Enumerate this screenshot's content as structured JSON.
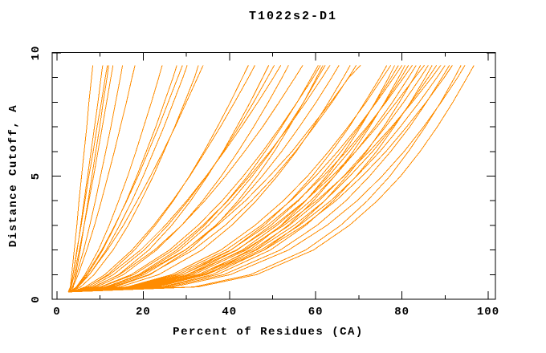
{
  "page": {
    "background": "#FFFFFF"
  },
  "chart_data": {
    "type": "line",
    "title": "T1022s2-D1",
    "xlabel": "Percent of Residues (CA)",
    "ylabel": "Distance Cutoff, A",
    "xlim": [
      0,
      100
    ],
    "ylim": [
      0,
      10
    ],
    "x_ticks_major": [
      0,
      20,
      40,
      60,
      80,
      100
    ],
    "x_ticks_minor": [
      10,
      30,
      50,
      70,
      90
    ],
    "y_ticks_major": [
      0,
      5,
      10
    ],
    "y_ticks_minor": [
      1,
      2,
      3,
      4,
      6,
      7,
      8,
      9
    ],
    "grid": false,
    "legend": false,
    "axis_color": "#000000",
    "curve_color": "#FF8C00",
    "n_curves": 50,
    "orientation": "each series lists x values (percent of residues) sampled at the shared y_samples (distance cutoff, A); curves estimated from pixels",
    "y_samples": [
      0.3,
      0.5,
      1,
      2,
      3,
      4,
      5,
      6,
      7,
      8,
      9,
      9.5
    ],
    "series": [
      [
        2.6,
        3.1,
        3.4,
        4.0,
        4.6,
        5.1,
        5.7,
        6.3,
        6.9,
        7.4,
        8.0,
        8.3
      ],
      [
        2.8,
        3.2,
        3.7,
        4.7,
        5.5,
        6.3,
        7.1,
        7.9,
        8.7,
        9.5,
        10.2,
        10.6
      ],
      [
        3.0,
        3.2,
        3.7,
        4.6,
        5.6,
        6.5,
        7.4,
        8.4,
        9.3,
        10.3,
        11.2,
        11.7
      ],
      [
        3.4,
        3.8,
        4.3,
        5.4,
        6.3,
        7.2,
        8.1,
        9.0,
        9.9,
        10.7,
        11.6,
        12.0
      ],
      [
        2.9,
        3.3,
        4.0,
        5.2,
        6.3,
        7.4,
        8.5,
        9.5,
        10.5,
        11.5,
        12.5,
        13.0
      ],
      [
        3.1,
        3.6,
        4.5,
        6.2,
        7.6,
        8.9,
        10.1,
        11.3,
        12.5,
        13.6,
        14.7,
        15.2
      ],
      [
        2.7,
        3.7,
        4.9,
        6.9,
        8.7,
        10.3,
        11.8,
        13.3,
        14.7,
        16.1,
        17.4,
        18.1
      ],
      [
        3.2,
        4.5,
        6.5,
        9.6,
        12.1,
        14.3,
        16.4,
        18.3,
        20.1,
        21.9,
        23.6,
        24.4
      ],
      [
        2.8,
        4.7,
        7.1,
        10.6,
        13.5,
        16.1,
        18.5,
        20.7,
        22.9,
        24.9,
        26.9,
        27.8
      ],
      [
        3.0,
        4.5,
        6.8,
        10.4,
        13.4,
        16.2,
        18.8,
        21.2,
        23.6,
        25.8,
        28.0,
        29.1
      ],
      [
        3.3,
        4.9,
        7.5,
        11.4,
        14.5,
        17.4,
        20.0,
        22.4,
        24.8,
        27.0,
        29.2,
        30.2
      ],
      [
        2.9,
        5.5,
        8.6,
        13.0,
        16.5,
        19.5,
        22.3,
        24.8,
        27.3,
        29.6,
        31.9,
        32.8
      ],
      [
        3.1,
        4.7,
        7.5,
        11.7,
        15.4,
        18.6,
        21.7,
        24.6,
        27.4,
        30.0,
        32.6,
        33.9
      ],
      [
        2.7,
        7.2,
        11.8,
        18.0,
        22.8,
        27.0,
        30.7,
        34.1,
        37.2,
        40.2,
        43.0,
        44.4
      ],
      [
        3.2,
        6.6,
        11.1,
        17.4,
        22.4,
        26.8,
        30.8,
        34.4,
        37.9,
        41.2,
        44.4,
        45.9
      ],
      [
        2.9,
        8.6,
        14.3,
        21.3,
        26.6,
        31.0,
        34.9,
        38.5,
        41.7,
        44.8,
        47.7,
        49.1
      ],
      [
        3.1,
        7.8,
        13.1,
        20.2,
        25.7,
        30.4,
        34.7,
        38.6,
        42.2,
        45.6,
        48.8,
        50.4
      ],
      [
        3.3,
        7.1,
        12.2,
        19.4,
        25.1,
        30.1,
        34.6,
        38.8,
        42.8,
        46.6,
        50.2,
        51.9
      ],
      [
        2.8,
        9.2,
        15.4,
        23.1,
        28.9,
        33.8,
        38.1,
        42.0,
        45.6,
        49.0,
        52.2,
        53.7
      ],
      [
        3.0,
        8.4,
        14.5,
        22.6,
        28.9,
        34.3,
        39.1,
        43.5,
        47.7,
        51.5,
        55.2,
        57.0
      ],
      [
        3.2,
        11.5,
        18.9,
        27.8,
        34.2,
        39.5,
        44.2,
        48.3,
        52.1,
        55.7,
        59.0,
        60.6
      ],
      [
        2.7,
        10.1,
        17.2,
        26.1,
        32.7,
        38.3,
        43.2,
        47.7,
        51.8,
        55.7,
        59.4,
        61.1
      ],
      [
        3.4,
        13.5,
        21.6,
        30.6,
        36.9,
        42.0,
        46.4,
        50.4,
        53.9,
        57.2,
        60.2,
        61.7
      ],
      [
        2.9,
        11.7,
        19.3,
        28.5,
        35.1,
        40.5,
        45.3,
        49.6,
        53.5,
        57.2,
        60.5,
        62.2
      ],
      [
        3.1,
        10.3,
        17.8,
        26.9,
        33.8,
        39.6,
        44.7,
        49.4,
        53.7,
        57.7,
        61.5,
        63.3
      ],
      [
        3.3,
        12.2,
        20.2,
        29.8,
        36.8,
        42.6,
        47.6,
        52.1,
        56.2,
        60.1,
        63.7,
        65.4
      ],
      [
        2.8,
        14.6,
        23.6,
        33.6,
        40.5,
        46.2,
        51.1,
        55.5,
        59.4,
        63.0,
        66.4,
        68.0
      ],
      [
        3.0,
        12.8,
        21.3,
        31.6,
        39.0,
        45.1,
        50.5,
        55.3,
        59.6,
        63.8,
        67.6,
        69.4
      ],
      [
        3.2,
        11.2,
        19.5,
        29.7,
        37.2,
        43.7,
        49.3,
        54.5,
        59.0,
        63.5,
        67.7,
        70.4
      ],
      [
        2.6,
        18.9,
        29.2,
        40.4,
        48.0,
        54.1,
        59.2,
        63.7,
        67.8,
        71.4,
        74.9,
        76.5
      ],
      [
        3.0,
        16.3,
        26.6,
        38.0,
        45.9,
        52.5,
        58.1,
        63.0,
        67.5,
        71.7,
        75.5,
        77.4
      ],
      [
        3.4,
        22.7,
        33.6,
        44.7,
        52.0,
        57.7,
        62.5,
        66.7,
        70.4,
        73.8,
        76.9,
        78.3
      ],
      [
        2.8,
        19.5,
        30.2,
        41.8,
        49.6,
        56.0,
        61.2,
        65.9,
        70.1,
        73.9,
        77.5,
        79.2
      ],
      [
        3.2,
        16.7,
        27.4,
        39.2,
        47.4,
        54.2,
        60.0,
        65.1,
        69.8,
        74.1,
        78.1,
        80.0
      ],
      [
        2.9,
        23.3,
        34.5,
        46.0,
        53.6,
        59.5,
        64.4,
        68.7,
        72.5,
        76.0,
        79.2,
        80.7
      ],
      [
        3.1,
        20.0,
        31.0,
        43.0,
        51.0,
        57.6,
        63.0,
        67.8,
        72.2,
        76.1,
        79.8,
        81.5
      ],
      [
        3.3,
        17.2,
        28.2,
        40.3,
        48.8,
        55.8,
        61.8,
        67.1,
        71.9,
        76.3,
        80.4,
        82.4
      ],
      [
        2.7,
        20.3,
        31.7,
        43.9,
        52.1,
        58.8,
        64.4,
        69.3,
        73.7,
        77.8,
        81.5,
        83.3
      ],
      [
        3.0,
        24.3,
        36.0,
        48.0,
        55.9,
        62.1,
        67.2,
        71.8,
        75.8,
        79.4,
        82.8,
        84.3
      ],
      [
        3.2,
        17.7,
        29.1,
        41.6,
        50.4,
        57.6,
        63.8,
        69.3,
        74.2,
        78.7,
        83.0,
        85.2
      ],
      [
        2.8,
        20.9,
        32.7,
        45.3,
        53.9,
        60.8,
        66.5,
        71.6,
        76.2,
        80.4,
        84.3,
        86.1
      ],
      [
        3.1,
        25.0,
        37.1,
        49.5,
        57.7,
        64.1,
        69.4,
        74.1,
        78.2,
        82.0,
        85.4,
        87.0
      ],
      [
        2.9,
        21.4,
        33.3,
        46.3,
        55.0,
        62.1,
        67.9,
        73.2,
        77.9,
        82.1,
        86.1,
        88.0
      ],
      [
        3.3,
        18.3,
        30.3,
        43.4,
        52.6,
        60.2,
        66.6,
        72.4,
        77.6,
        82.4,
        86.9,
        89.0
      ],
      [
        3.0,
        21.8,
        34.1,
        47.3,
        56.2,
        63.5,
        69.5,
        74.9,
        79.6,
        84.0,
        88.1,
        90.0
      ],
      [
        3.2,
        26.0,
        38.7,
        51.8,
        60.3,
        67.0,
        72.5,
        77.4,
        81.8,
        85.7,
        89.3,
        91.0
      ],
      [
        2.7,
        22.2,
        34.7,
        48.1,
        57.3,
        64.7,
        70.8,
        76.3,
        81.1,
        85.6,
        89.8,
        91.7
      ],
      [
        3.1,
        31.8,
        44.9,
        57.7,
        65.8,
        72.0,
        77.2,
        81.5,
        85.4,
        89.0,
        92.2,
        93.7
      ],
      [
        2.9,
        27.0,
        40.2,
        53.7,
        62.6,
        69.6,
        75.4,
        80.5,
        85.0,
        89.1,
        92.9,
        94.6
      ],
      [
        3.3,
        32.7,
        46.3,
        59.5,
        67.8,
        74.3,
        79.7,
        84.2,
        88.2,
        91.8,
        95.1,
        96.7
      ]
    ]
  }
}
